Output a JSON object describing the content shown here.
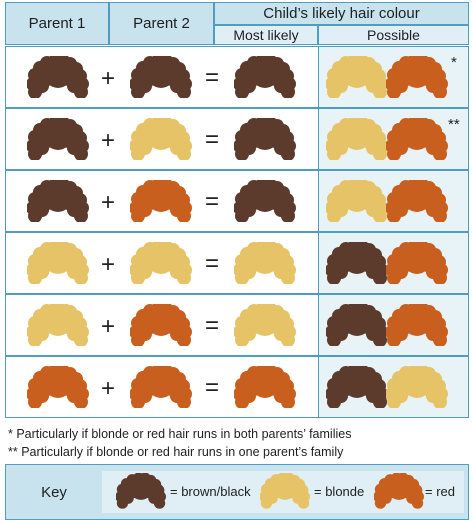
{
  "header": {
    "parent1": "Parent 1",
    "parent2": "Parent 2",
    "child_title": "Child’s likely hair colour",
    "most_likely": "Most likely",
    "possible": "Possible"
  },
  "colors": {
    "brown": "#5c3a2c",
    "blonde": "#e6c367",
    "red": "#c95f1e",
    "border": "#4f9dc0",
    "header_bg": "#c8e2ee"
  },
  "rows": [
    {
      "p1": "brown",
      "p2": "brown",
      "likely": "brown",
      "possible": [
        "blonde",
        "red"
      ],
      "mark": "*"
    },
    {
      "p1": "brown",
      "p2": "blonde",
      "likely": "brown",
      "possible": [
        "blonde",
        "red"
      ],
      "mark": "**"
    },
    {
      "p1": "brown",
      "p2": "red",
      "likely": "brown",
      "possible": [
        "blonde",
        "red"
      ],
      "mark": ""
    },
    {
      "p1": "blonde",
      "p2": "blonde",
      "likely": "blonde",
      "possible": [
        "brown",
        "red"
      ],
      "mark": ""
    },
    {
      "p1": "blonde",
      "p2": "red",
      "likely": "blonde",
      "possible": [
        "brown",
        "red"
      ],
      "mark": ""
    },
    {
      "p1": "red",
      "p2": "red",
      "likely": "red",
      "possible": [
        "brown",
        "blonde"
      ],
      "mark": ""
    }
  ],
  "operators": {
    "plus": "+",
    "equals": "="
  },
  "notes": [
    "* Particularly if blonde or red hair runs in both parents’ families",
    "** Particularly if blonde or red hair runs in one parent’s family"
  ],
  "key": {
    "label": "Key",
    "items": [
      {
        "color": "brown",
        "text": "= brown/black"
      },
      {
        "color": "blonde",
        "text": "= blonde"
      },
      {
        "color": "red",
        "text": "= red"
      }
    ]
  }
}
